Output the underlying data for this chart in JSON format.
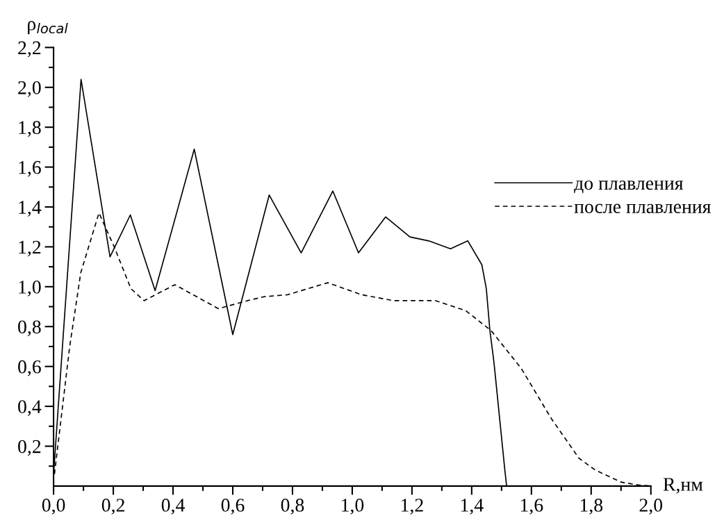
{
  "chart_data": {
    "type": "line",
    "xlabel": "R,нм",
    "ylabel": "ρ$_{local}$",
    "xlim": [
      0,
      2.0
    ],
    "ylim": [
      0,
      2.2
    ],
    "xticks": [
      {
        "value": 0.0,
        "label": "0,0"
      },
      {
        "value": 0.1,
        "label": null
      },
      {
        "value": 0.2,
        "label": "0,2"
      },
      {
        "value": 0.3,
        "label": null
      },
      {
        "value": 0.4,
        "label": "0,4"
      },
      {
        "value": 0.5,
        "label": null
      },
      {
        "value": 0.6,
        "label": "0,6"
      },
      {
        "value": 0.7,
        "label": null
      },
      {
        "value": 0.8,
        "label": "0,8"
      },
      {
        "value": 0.9,
        "label": null
      },
      {
        "value": 1.0,
        "label": "1,0"
      },
      {
        "value": 1.1,
        "label": null
      },
      {
        "value": 1.2,
        "label": "1,2"
      },
      {
        "value": 1.3,
        "label": null
      },
      {
        "value": 1.4,
        "label": "1,4"
      },
      {
        "value": 1.5,
        "label": null
      },
      {
        "value": 1.6,
        "label": "1,6"
      },
      {
        "value": 1.7,
        "label": null
      },
      {
        "value": 1.8,
        "label": "1,8"
      },
      {
        "value": 1.9,
        "label": null
      },
      {
        "value": 2.0,
        "label": "2,0"
      }
    ],
    "yticks": [
      {
        "value": 0.1,
        "label": null
      },
      {
        "value": 0.2,
        "label": "0,2"
      },
      {
        "value": 0.3,
        "label": null
      },
      {
        "value": 0.4,
        "label": "0,4"
      },
      {
        "value": 0.5,
        "label": null
      },
      {
        "value": 0.6,
        "label": "0,6"
      },
      {
        "value": 0.7,
        "label": null
      },
      {
        "value": 0.8,
        "label": "0,8"
      },
      {
        "value": 0.9,
        "label": null
      },
      {
        "value": 1.0,
        "label": "1,0"
      },
      {
        "value": 1.1,
        "label": null
      },
      {
        "value": 1.2,
        "label": "1,2"
      },
      {
        "value": 1.3,
        "label": null
      },
      {
        "value": 1.4,
        "label": "1,4"
      },
      {
        "value": 1.5,
        "label": null
      },
      {
        "value": 1.6,
        "label": "1,6"
      },
      {
        "value": 1.7,
        "label": null
      },
      {
        "value": 1.8,
        "label": "1,8"
      },
      {
        "value": 1.9,
        "label": null
      },
      {
        "value": 2.0,
        "label": "2,0"
      },
      {
        "value": 2.1,
        "label": null
      },
      {
        "value": 2.2,
        "label": "2,2"
      }
    ],
    "grid": false,
    "legend": "right",
    "marker": "none",
    "series": [
      {
        "name": "до плавления",
        "color": "#000000",
        "line_style": "solid",
        "x": [
          0,
          0.092,
          0.189,
          0.257,
          0.34,
          0.471,
          0.6,
          0.722,
          0.829,
          0.935,
          1.021,
          1.112,
          1.193,
          1.256,
          1.329,
          1.387,
          1.434,
          1.449,
          1.461,
          1.473,
          1.476,
          1.511,
          1.517
        ],
        "values": [
          0.06,
          2.04,
          1.15,
          1.36,
          0.98,
          1.69,
          0.76,
          1.46,
          1.17,
          1.48,
          1.17,
          1.35,
          1.25,
          1.23,
          1.19,
          1.23,
          1.11,
          0.99,
          0.78,
          0.64,
          0.6,
          0.08,
          0.0
        ]
      },
      {
        "name": "после плавления",
        "color": "#000000",
        "line_style": "dashed",
        "x": [
          0.003,
          0.054,
          0.091,
          0.152,
          0.203,
          0.259,
          0.303,
          0.406,
          0.552,
          0.649,
          0.705,
          0.784,
          0.918,
          1.031,
          1.139,
          1.279,
          1.38,
          1.465,
          1.566,
          1.666,
          1.759,
          1.814,
          1.9,
          1.96,
          2.0
        ],
        "values": [
          0.06,
          0.7,
          1.07,
          1.37,
          1.2,
          0.99,
          0.93,
          1.01,
          0.89,
          0.93,
          0.95,
          0.96,
          1.02,
          0.96,
          0.93,
          0.93,
          0.88,
          0.78,
          0.59,
          0.34,
          0.14,
          0.08,
          0.02,
          0.005,
          0.0
        ]
      }
    ]
  }
}
